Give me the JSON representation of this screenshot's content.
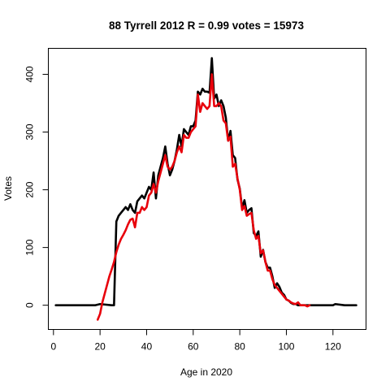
{
  "chart_data": {
    "type": "line",
    "title": "88 Tyrrell 2012 R = 0.99 votes = 15973",
    "xlabel": "Age in 2020",
    "ylabel": "Votes",
    "xlim": [
      -2.2,
      134.2
    ],
    "ylim": [
      -42,
      445
    ],
    "xticks": [
      0,
      20,
      40,
      60,
      80,
      100,
      120
    ],
    "yticks": [
      0,
      100,
      200,
      300,
      400
    ],
    "grid": false,
    "series": [
      {
        "color": "#000000",
        "x": [
          1,
          10,
          18,
          20,
          25,
          26,
          27,
          28,
          29,
          30,
          31,
          32,
          33,
          34,
          35,
          36,
          37,
          38,
          39,
          40,
          41,
          42,
          43,
          44,
          45,
          46,
          47,
          48,
          49,
          50,
          51,
          52,
          53,
          54,
          55,
          56,
          57,
          58,
          59,
          60,
          61,
          62,
          63,
          64,
          65,
          66,
          67,
          68,
          69,
          70,
          71,
          72,
          73,
          74,
          75,
          76,
          77,
          78,
          79,
          80,
          81,
          82,
          83,
          84,
          85,
          86,
          87,
          88,
          89,
          90,
          91,
          92,
          93,
          94,
          95,
          96,
          97,
          98,
          99,
          100,
          101,
          102,
          103,
          104,
          105,
          106,
          107,
          108,
          109,
          110,
          115,
          120,
          121,
          125,
          130
        ],
        "y": [
          0,
          0,
          0,
          2,
          0,
          0,
          145,
          155,
          160,
          165,
          170,
          165,
          175,
          165,
          160,
          180,
          185,
          190,
          185,
          195,
          205,
          200,
          230,
          185,
          225,
          240,
          255,
          275,
          245,
          225,
          235,
          250,
          270,
          295,
          275,
          305,
          300,
          295,
          310,
          310,
          320,
          370,
          365,
          375,
          370,
          370,
          368,
          428,
          358,
          365,
          345,
          355,
          345,
          325,
          285,
          302,
          260,
          255,
          218,
          202,
          168,
          182,
          160,
          165,
          168,
          125,
          120,
          128,
          84,
          96,
          75,
          65,
          65,
          50,
          30,
          38,
          32,
          22,
          18,
          10,
          8,
          4,
          2,
          2,
          0,
          0,
          0,
          0,
          0,
          0,
          0,
          0,
          2,
          0,
          0
        ]
      },
      {
        "color": "#e8000b",
        "x": [
          19,
          20,
          21,
          22,
          23,
          24,
          25,
          26,
          27,
          28,
          29,
          30,
          31,
          32,
          33,
          34,
          35,
          36,
          37,
          38,
          39,
          40,
          41,
          42,
          43,
          44,
          45,
          46,
          47,
          48,
          49,
          50,
          51,
          52,
          53,
          54,
          55,
          56,
          57,
          58,
          59,
          60,
          61,
          62,
          63,
          64,
          65,
          66,
          67,
          68,
          69,
          70,
          71,
          72,
          73,
          74,
          75,
          76,
          77,
          78,
          79,
          80,
          81,
          82,
          83,
          84,
          85,
          86,
          87,
          88,
          89,
          90,
          91,
          92,
          93,
          94,
          95,
          96,
          97,
          98,
          99,
          100,
          101,
          102,
          103,
          104,
          105,
          106,
          107,
          108,
          109,
          110
        ],
        "y": [
          -25,
          -15,
          5,
          20,
          35,
          50,
          62,
          75,
          92,
          105,
          115,
          122,
          130,
          140,
          148,
          150,
          135,
          160,
          160,
          170,
          165,
          170,
          190,
          195,
          210,
          195,
          215,
          230,
          245,
          260,
          240,
          235,
          240,
          250,
          265,
          275,
          265,
          295,
          290,
          290,
          300,
          305,
          310,
          365,
          335,
          350,
          345,
          340,
          345,
          400,
          345,
          345,
          350,
          345,
          320,
          315,
          285,
          292,
          240,
          245,
          220,
          200,
          165,
          172,
          155,
          158,
          160,
          130,
          115,
          120,
          90,
          95,
          75,
          60,
          60,
          45,
          35,
          30,
          25,
          20,
          15,
          10,
          8,
          5,
          3,
          2,
          5,
          0,
          0,
          0,
          -2,
          0
        ]
      }
    ]
  }
}
